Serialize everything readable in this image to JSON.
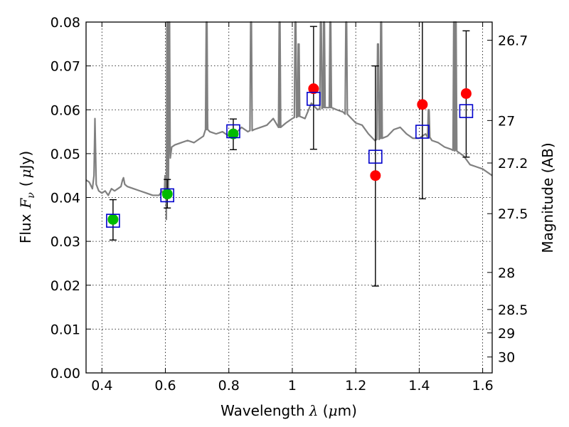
{
  "chart_data": {
    "type": "scatter",
    "xlabel": {
      "text": "Wavelength",
      "symbol": "λ",
      "unit_open": " (",
      "unit_mu": "μ",
      "unit_rest": "m)"
    },
    "ylabel": {
      "text": "Flux",
      "symbol": "F",
      "subscript": "ν",
      "unit_open": "(",
      "unit_mu": "μ",
      "unit_rest": "Jy)"
    },
    "y2label": "Magnitude (AB)",
    "xlim": [
      0.35,
      1.63
    ],
    "ylim": [
      0.0,
      0.08
    ],
    "xticks": [
      0.4,
      0.6,
      0.8,
      1.0,
      1.2,
      1.4,
      1.6
    ],
    "xtick_labels": [
      "0.4",
      "0.6",
      "0.8",
      "1",
      "1.2",
      "1.4",
      "1.6"
    ],
    "yticks": [
      0.0,
      0.01,
      0.02,
      0.03,
      0.04,
      0.05,
      0.06,
      0.07,
      0.08
    ],
    "ytick_labels": [
      "0.00",
      "0.01",
      "0.02",
      "0.03",
      "0.04",
      "0.05",
      "0.06",
      "0.07",
      "0.08"
    ],
    "y2ticks": [
      {
        "label": "26.7",
        "mag": 26.7
      },
      {
        "label": "27",
        "mag": 27.0
      },
      {
        "label": "27.2",
        "mag": 27.2
      },
      {
        "label": "27.5",
        "mag": 27.5
      },
      {
        "label": "28",
        "mag": 28.0
      },
      {
        "label": "28.5",
        "mag": 28.5
      },
      {
        "label": "29",
        "mag": 29.0
      },
      {
        "label": "30",
        "mag": 30.0
      }
    ],
    "grid": true,
    "colors": {
      "model": "#808080",
      "green": "#00bb00",
      "red": "#ff0000",
      "box": "#0000cc",
      "error": "#000000"
    },
    "model_spectrum": {
      "x": [
        0.35,
        0.36,
        0.37,
        0.375,
        0.378,
        0.382,
        0.39,
        0.4,
        0.41,
        0.42,
        0.43,
        0.44,
        0.45,
        0.46,
        0.465,
        0.468,
        0.472,
        0.48,
        0.5,
        0.52,
        0.54,
        0.56,
        0.58,
        0.59,
        0.6,
        0.603,
        0.606,
        0.61,
        0.615,
        0.62,
        0.63,
        0.65,
        0.67,
        0.69,
        0.7,
        0.72,
        0.73,
        0.733,
        0.74,
        0.76,
        0.78,
        0.8,
        0.82,
        0.84,
        0.86,
        0.88,
        0.9,
        0.92,
        0.94,
        0.96,
        0.98,
        1.0,
        1.02,
        1.04,
        1.06,
        1.08,
        1.1,
        1.12,
        1.14,
        1.16,
        1.18,
        1.2,
        1.22,
        1.24,
        1.26,
        1.28,
        1.3,
        1.32,
        1.34,
        1.36,
        1.38,
        1.4,
        1.42,
        1.44,
        1.46,
        1.48,
        1.5,
        1.52,
        1.54,
        1.56,
        1.58,
        1.6,
        1.62,
        1.63
      ],
      "y": [
        0.044,
        0.0435,
        0.042,
        0.045,
        0.058,
        0.043,
        0.0415,
        0.041,
        0.0415,
        0.0405,
        0.042,
        0.0415,
        0.042,
        0.0425,
        0.044,
        0.0445,
        0.043,
        0.0425,
        0.042,
        0.0415,
        0.041,
        0.0405,
        0.0405,
        0.0415,
        0.04,
        0.035,
        0.04,
        0.048,
        0.0505,
        0.0515,
        0.052,
        0.0525,
        0.053,
        0.0525,
        0.053,
        0.054,
        0.0555,
        0.0575,
        0.055,
        0.0545,
        0.055,
        0.054,
        0.0545,
        0.056,
        0.055,
        0.0555,
        0.056,
        0.0565,
        0.058,
        0.056,
        0.057,
        0.058,
        0.0585,
        0.058,
        0.0615,
        0.06,
        0.0605,
        0.0605,
        0.06,
        0.0595,
        0.0585,
        0.057,
        0.0565,
        0.0545,
        0.053,
        0.0535,
        0.054,
        0.0555,
        0.056,
        0.0545,
        0.0535,
        0.0535,
        0.0545,
        0.053,
        0.0525,
        0.0515,
        0.051,
        0.0505,
        0.0495,
        0.0475,
        0.047,
        0.0465,
        0.0455,
        0.045
      ],
      "emission_lines": [
        {
          "x": 0.6,
          "peak": 0.045
        },
        {
          "x": 0.606,
          "peak": 0.08
        },
        {
          "x": 0.612,
          "peak": 0.08
        },
        {
          "x": 0.73,
          "peak": 0.08
        },
        {
          "x": 0.87,
          "peak": 0.08
        },
        {
          "x": 0.96,
          "peak": 0.08
        },
        {
          "x": 1.01,
          "peak": 0.08
        },
        {
          "x": 1.02,
          "peak": 0.075
        },
        {
          "x": 1.09,
          "peak": 0.08
        },
        {
          "x": 1.1,
          "peak": 0.08
        },
        {
          "x": 1.12,
          "peak": 0.08
        },
        {
          "x": 1.17,
          "peak": 0.08
        },
        {
          "x": 1.27,
          "peak": 0.075
        },
        {
          "x": 1.28,
          "peak": 0.08
        },
        {
          "x": 1.43,
          "peak": 0.06
        },
        {
          "x": 1.51,
          "peak": 0.08
        },
        {
          "x": 1.515,
          "peak": 0.08
        }
      ]
    },
    "filled_points": [
      {
        "x": 0.435,
        "y": 0.035,
        "color": "green"
      },
      {
        "x": 0.606,
        "y": 0.0408,
        "color": "green"
      },
      {
        "x": 0.814,
        "y": 0.0545,
        "color": "green"
      },
      {
        "x": 1.067,
        "y": 0.0648,
        "color": "red"
      },
      {
        "x": 1.262,
        "y": 0.045,
        "color": "red"
      },
      {
        "x": 1.41,
        "y": 0.0612,
        "color": "red"
      },
      {
        "x": 1.548,
        "y": 0.0637,
        "color": "red"
      }
    ],
    "open_squares": [
      {
        "x": 0.435,
        "y": 0.0347
      },
      {
        "x": 0.606,
        "y": 0.0405
      },
      {
        "x": 0.814,
        "y": 0.0551
      },
      {
        "x": 1.067,
        "y": 0.0625
      },
      {
        "x": 1.262,
        "y": 0.0493
      },
      {
        "x": 1.41,
        "y": 0.055
      },
      {
        "x": 1.548,
        "y": 0.0597
      }
    ],
    "error_bars": [
      {
        "x": 0.435,
        "low": 0.0303,
        "high": 0.0395
      },
      {
        "x": 0.606,
        "low": 0.0376,
        "high": 0.0441
      },
      {
        "x": 0.814,
        "low": 0.0509,
        "high": 0.0579
      },
      {
        "x": 1.067,
        "low": 0.051,
        "high": 0.079
      },
      {
        "x": 1.262,
        "low": 0.0198,
        "high": 0.07
      },
      {
        "x": 1.41,
        "low": 0.0397,
        "high": 0.08
      },
      {
        "x": 1.548,
        "low": 0.0492,
        "high": 0.078
      }
    ]
  }
}
